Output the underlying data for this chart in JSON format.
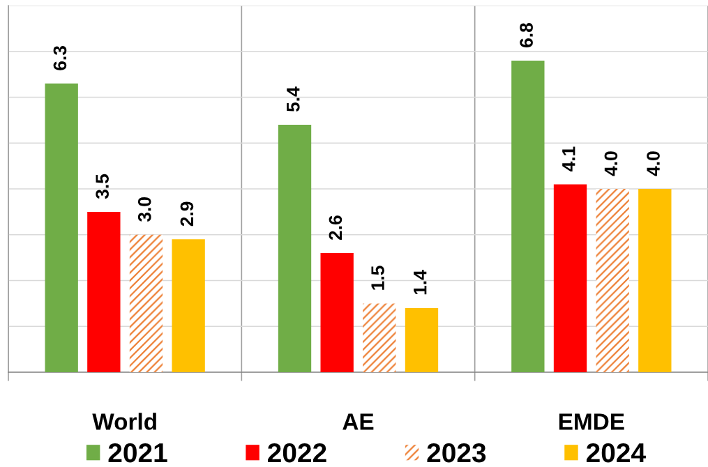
{
  "chart_data": {
    "type": "bar",
    "categories": [
      "World",
      "AE",
      "EMDE"
    ],
    "series": [
      {
        "name": "2021",
        "color": "#70ad47",
        "values": [
          6.3,
          5.4,
          6.8
        ],
        "value_labels": [
          "6.3",
          "5.4",
          "6.8"
        ]
      },
      {
        "name": "2022",
        "color": "#ff0000",
        "values": [
          3.5,
          2.6,
          4.1
        ],
        "value_labels": [
          "3.5",
          "2.6",
          "4.1"
        ]
      },
      {
        "name": "2023",
        "color": "#ed7d31",
        "values": [
          3.0,
          1.5,
          4.0
        ],
        "value_labels": [
          "3.0",
          "1.5",
          "4.0"
        ]
      },
      {
        "name": "2024",
        "color": "#ffc000",
        "values": [
          2.9,
          1.4,
          4.0
        ],
        "value_labels": [
          "2.9",
          "1.4",
          "4.0"
        ]
      }
    ],
    "ylim": [
      0,
      8
    ],
    "yticks": [
      {
        "value": 0,
        "label": null
      },
      {
        "value": 1,
        "label": null
      },
      {
        "value": 2,
        "label": null
      },
      {
        "value": 3,
        "label": null
      },
      {
        "value": 4,
        "label": null
      },
      {
        "value": 5,
        "label": null
      },
      {
        "value": 6,
        "label": null
      },
      {
        "value": 7,
        "label": null
      },
      {
        "value": 8,
        "label": null
      }
    ],
    "tick_labels": "x",
    "grid": true,
    "legend": "bottom"
  }
}
